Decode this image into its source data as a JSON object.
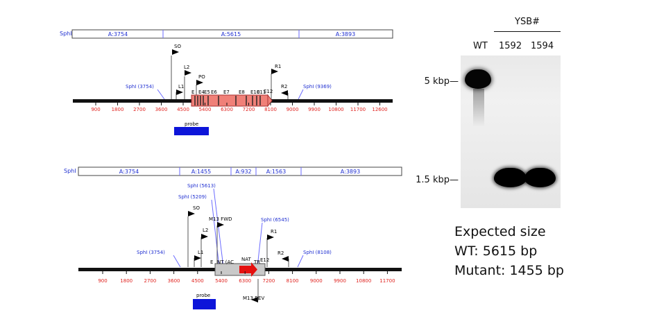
{
  "top_map": {
    "enzyme": "SphI",
    "segments": [
      "A:3754",
      "A:5615",
      "A:3893"
    ],
    "ticks": [
      "900",
      "1800",
      "2700",
      "3600",
      "4500",
      "5400",
      "6300",
      "7200",
      "8100",
      "9000",
      "9900",
      "10800",
      "11700",
      "12600"
    ],
    "sites": [
      "SphI (3754)",
      "SphI (9369)"
    ],
    "primers": [
      "SO",
      "L2",
      "PO",
      "L1",
      "R1",
      "R2",
      "E12"
    ],
    "exons": [
      "E",
      "E4",
      "E5",
      "E6",
      "E7",
      "E8",
      "E10",
      "E11"
    ],
    "probe": "probe"
  },
  "bottom_map": {
    "enzyme": "SphI",
    "segments": [
      "A:3754",
      "A:1455",
      "A:932",
      "A:1563",
      "A:3893"
    ],
    "ticks": [
      "900",
      "1800",
      "2700",
      "3600",
      "4500",
      "5400",
      "6300",
      "7200",
      "8100",
      "9000",
      "9900",
      "10800",
      "11700"
    ],
    "sites": [
      "SphI (3754)",
      "SphI (5613)",
      "SphI (5209)",
      "SphI (6545)",
      "SphI (8108)"
    ],
    "primers": [
      "SO",
      "M13 FWD",
      "L2",
      "L1",
      "R1",
      "R2",
      "E12",
      "M13 REV"
    ],
    "features": [
      "E",
      "NT (AC",
      "NAT",
      "TR"
    ],
    "probe": "probe"
  },
  "gel": {
    "group": "YSB#",
    "lanes": [
      "WT",
      "1592",
      "1594"
    ],
    "markers": [
      "5 kbp—",
      "1.5 kbp—"
    ]
  },
  "expected": {
    "heading": "Expected size",
    "wt": "WT: 5615 bp",
    "mutant": "Mutant: 1455 bp"
  }
}
